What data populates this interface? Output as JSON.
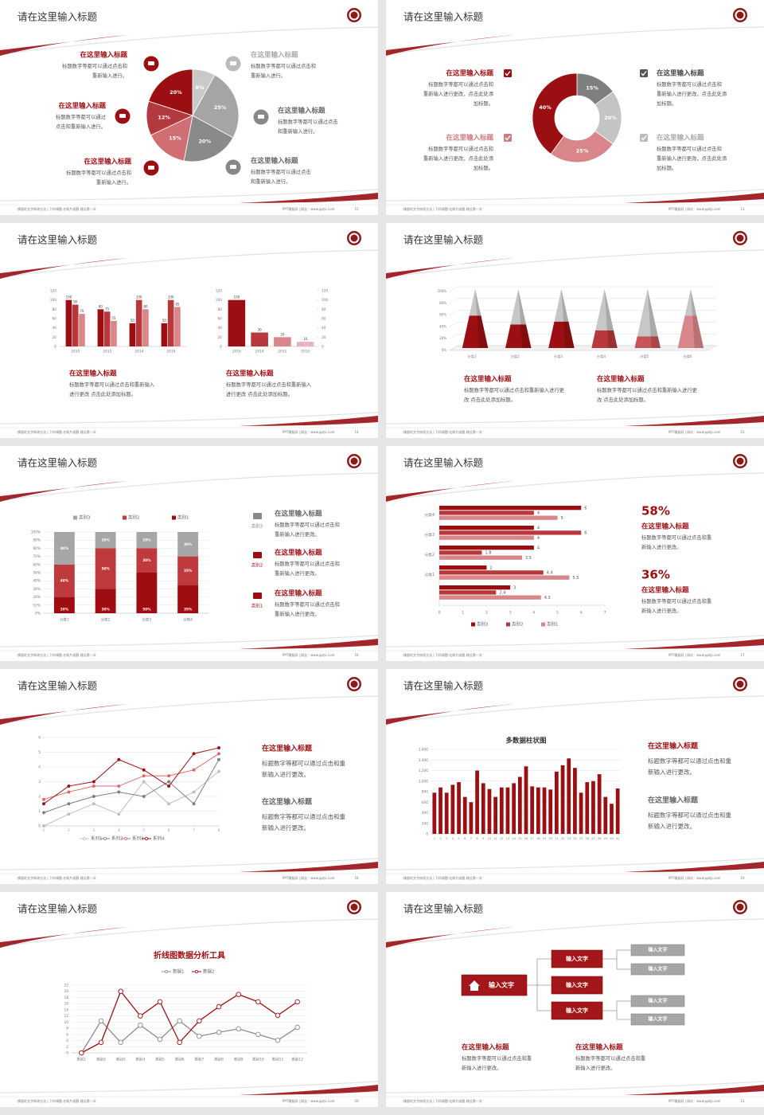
{
  "slides": [
    {
      "title": "请在这里输入标题",
      "footer_left": "模版的文字修改方法 | 下科课题-右联片阅题-建议第一次",
      "footer_right": "PPT模板网 | 网址：www.pptjs.com",
      "page": "12",
      "blocks": [
        {
          "heading": "在这里输入标题",
          "lines": [
            "标题数字等都可以通过点击和",
            "重新输入进行。"
          ]
        },
        {
          "heading": "在这里输入标题",
          "lines": [
            "标题数字等都可以通过",
            "点击和重新输入进行。"
          ]
        },
        {
          "heading": "在这里输入标题",
          "lines": [
            "标题数字等都可以通过点击和",
            "重新输入进行。"
          ]
        },
        {
          "heading": "在这里输入标题",
          "lines": [
            "标题数字等都可以通过点击和",
            "重新输入进行。"
          ]
        },
        {
          "heading": "在这里输入标题",
          "lines": [
            "标题数字等都可以通过点击",
            "和重新输入进行。"
          ]
        },
        {
          "heading": "在这里输入标题",
          "lines": [
            "标题数字等都可以通过点击",
            "和重新输入进行。"
          ]
        }
      ]
    },
    {
      "title": "请在这里输入标题",
      "footer_left": "模版的文字修改方法 | 下科课题-右联片阅题-建议第一次",
      "footer_right": "PPT模板网 | 网址：www.pptjs.com",
      "page": "13",
      "blocks": [
        {
          "heading": "在这里输入标题",
          "lines": [
            "标题数字等都可以通过点击和",
            "重新输入进行更改，点击此处添",
            "加标题。"
          ]
        },
        {
          "heading": "在这里输入标题",
          "lines": [
            "标题数字等都可以通过点击和",
            "重新输入进行更改，点击此处添",
            "加标题。"
          ]
        },
        {
          "heading": "在这里输入标题",
          "lines": [
            "标题数字等都可以通过点击和",
            "重新输入进行更改，点击此处添",
            "加标题。"
          ]
        },
        {
          "heading": "在这里输入标题",
          "lines": [
            "标题数字等都可以通过点击和",
            "重新输入进行更改，点击此处添",
            "加标题。"
          ]
        }
      ]
    },
    {
      "title": "请在这里输入标题",
      "footer_left": "模版的文字修改方法 | 下科课题-右联片阅题-建议第一次",
      "footer_right": "PPT模板网 | 网址：www.pptjs.com",
      "page": "14",
      "blocks": [
        {
          "heading": "在这里输入标题",
          "lines": [
            "标题数字等都可以通过点击和重新输入",
            "进行更改 点击此处添加标题。"
          ]
        },
        {
          "heading": "在这里输入标题",
          "lines": [
            "标题数字等都可以通过点击和重新输入",
            "进行更改 点击此处添加标题。"
          ]
        }
      ]
    },
    {
      "title": "请在这里输入标题",
      "footer_left": "模版的文字修改方法 | 下科课题-右联片阅题-建议第一次",
      "footer_right": "PPT模板网 | 网址：www.pptjs.com",
      "page": "15",
      "blocks": [
        {
          "heading": "在这里输入标题",
          "lines": [
            "标题数字等都可以通过点击和重新输入进行更",
            "改 点击此处添加标题。"
          ]
        },
        {
          "heading": "在这里输入标题",
          "lines": [
            "标题数字等都可以通过点击和重新输入进行更",
            "改 点击此处添加标题。"
          ]
        }
      ]
    },
    {
      "title": "请在这里输入标题",
      "footer_left": "模版的文字修改方法 | 下科课题-右联片阅题-建议第一次",
      "footer_right": "PPT模板网 | 网址：www.pptjs.com",
      "page": "16",
      "blocks": [
        {
          "label": "类别3",
          "heading": "在这里输入标题",
          "lines": [
            "标题数字等都可以通过点击和",
            "重新输入进行更改。"
          ]
        },
        {
          "label": "类别2",
          "heading": "在这里输入标题",
          "lines": [
            "标题数字等都可以通过点击和",
            "重新输入进行更改。"
          ]
        },
        {
          "label": "类别1",
          "heading": "在这里输入标题",
          "lines": [
            "标题数字等都可以通过点击和",
            "重新输入进行更改。"
          ]
        }
      ]
    },
    {
      "title": "请在这里输入标题",
      "footer_left": "模版的文字修改方法 | 下科课题-右联片阅题-建议第一次",
      "footer_right": "PPT模板网 | 网址：www.pptjs.com",
      "page": "17",
      "blocks": [
        {
          "stat": "58%",
          "heading": "在这里输入标题",
          "lines": [
            "标题数字等都可以通过点击和重",
            "新输入进行更改。"
          ]
        },
        {
          "stat": "36%",
          "heading": "在这里输入标题",
          "lines": [
            "标题数字等都可以通过点击和重",
            "新输入进行更改。"
          ]
        }
      ]
    },
    {
      "title": "请在这里输入标题",
      "footer_left": "模版的文字修改方法 | 下科课题-右联片阅题-建议第一次",
      "footer_right": "PPT模板网 | 网址：www.pptjs.com",
      "page": "18",
      "blocks": [
        {
          "heading": "在这里输入标题",
          "lines": [
            "标题数字等都可以通过点击和重",
            "新输入进行更改。"
          ]
        },
        {
          "heading": "在这里输入标题",
          "lines": [
            "标题数字等都可以通过点击和重",
            "新输入进行更改。"
          ]
        }
      ]
    },
    {
      "title": "请在这里输入标题",
      "footer_left": "模版的文字修改方法 | 下科课题-右联片阅题-建议第一次",
      "footer_right": "PPT模板网 | 网址：www.pptjs.com",
      "page": "19",
      "blocks": [
        {
          "heading": "在这里输入标题",
          "lines": [
            "标题数字等都可以通过点击和重",
            "新输入进行更改。"
          ]
        },
        {
          "heading": "在这里输入标题",
          "lines": [
            "标题数字等都可以通过点击和重",
            "新输入进行更改。"
          ]
        }
      ]
    },
    {
      "title": "请在这里输入标题",
      "footer_left": "模版的文字修改方法 | 下科课题-右联片阅题-建议第一次",
      "footer_right": "PPT模板网 | 网址：www.pptjs.com",
      "page": "20",
      "blocks": []
    },
    {
      "title": "请在这里输入标题",
      "footer_left": "模版的文字修改方法 | 下科课题-右联片阅题-建议第一次",
      "footer_right": "PPT模板网 | 网址：www.pptjs.com",
      "page": "21",
      "nodes": [
        "输入文字",
        "输入文字",
        "输入文字",
        "输入文字",
        "输入文字",
        "输入文字",
        "输入文字",
        "输入文字"
      ],
      "blocks": [
        {
          "heading": "在这里输入标题",
          "lines": [
            "标题数字等都可以通过点击和重",
            "新输入进行更改。"
          ]
        },
        {
          "heading": "在这里输入标题",
          "lines": [
            "标题数字等都可以通过点击和重",
            "新输入进行更改。"
          ]
        }
      ]
    }
  ],
  "chart_data": [
    {
      "type": "pie",
      "values": [
        8,
        25,
        20,
        15,
        12,
        20
      ],
      "value_labels": [
        "8%",
        "25%",
        "20%",
        "15%",
        "12%",
        "20%"
      ],
      "colors": [
        "#c9c9c9",
        "#a5a5a5",
        "#8a8a8a",
        "#cf6f73",
        "#b23a3e",
        "#9b0f12"
      ]
    },
    {
      "type": "donut",
      "values": [
        15,
        20,
        25,
        40
      ],
      "value_labels": [
        "15%",
        "20%",
        "25%",
        "40%"
      ],
      "colors": [
        "#7f7f7f",
        "#c4c4c4",
        "#d9868a",
        "#9b0f12"
      ]
    },
    {
      "type": "bar",
      "categories": [
        "2010",
        "2012",
        "2014",
        "2016"
      ],
      "series": [
        {
          "color": "#9b0f12",
          "values": [
            100,
            80,
            50,
            50
          ]
        },
        {
          "color": "#b8383b",
          "values": [
            90,
            75,
            100,
            100
          ]
        },
        {
          "color": "#d9868a",
          "values": [
            70,
            55,
            80,
            85
          ]
        }
      ],
      "ylim": [
        0,
        120
      ],
      "yticks": [
        0,
        20,
        40,
        60,
        80,
        100,
        120
      ],
      "data_labels": true
    },
    {
      "type": "bar",
      "categories": [
        "2016",
        "2014",
        "2012",
        "2010"
      ],
      "values": [
        100,
        30,
        20,
        10
      ],
      "colors": [
        "#9b0f12",
        "#b8383b",
        "#d9868a",
        "#e8b4b6"
      ],
      "ylim": [
        0,
        120
      ],
      "yticks": [
        0,
        20,
        40,
        60,
        80,
        100,
        120
      ],
      "y2lim": [
        0,
        120
      ],
      "y2ticks": [
        0,
        20,
        40,
        60,
        80,
        100,
        120
      ],
      "data_labels": true
    },
    {
      "type": "cone",
      "categories": [
        "分类1",
        "分类2",
        "分类3",
        "分类4",
        "分类5",
        "分类6"
      ],
      "series": [
        {
          "colors": [
            "#9b0f12",
            "#9b0f12",
            "#9b0f12",
            "#b8383b",
            "#c65458",
            "#d9868a"
          ],
          "values": [
            55,
            40,
            45,
            30,
            20,
            55
          ]
        },
        {
          "color": "#bdbdbd",
          "values": [
            45,
            60,
            55,
            70,
            80,
            45
          ]
        }
      ],
      "ylim": [
        0,
        100
      ],
      "yticks": [
        {
          "value": 0,
          "label": "0%"
        },
        {
          "value": 20,
          "label": "20%"
        },
        {
          "value": 40,
          "label": "40%"
        },
        {
          "value": 60,
          "label": "60%"
        },
        {
          "value": 80,
          "label": "80%"
        },
        {
          "value": 100,
          "label": "100%"
        }
      ],
      "grid": true
    },
    {
      "type": "stacked_bar",
      "categories": [
        "分类1",
        "分类2",
        "分类3",
        "分类4"
      ],
      "series": [
        {
          "name": "类别1",
          "color": "#a00d10",
          "values": [
            20,
            30,
            50,
            35
          ],
          "value_labels": [
            "20%",
            "30%",
            "50%",
            "35%"
          ]
        },
        {
          "name": "类别2",
          "color": "#bf3a3d",
          "values": [
            40,
            50,
            30,
            35
          ],
          "value_labels": [
            "40%",
            "50%",
            "30%",
            "35%"
          ]
        },
        {
          "name": "类别3",
          "color": "#a6a6a6",
          "values": [
            40,
            20,
            20,
            30
          ],
          "value_labels": [
            "40%",
            "20%",
            "20%",
            "30%"
          ]
        }
      ],
      "ylim": [
        0,
        100
      ],
      "yticks": [
        {
          "value": 0,
          "label": "0%"
        },
        {
          "value": 10,
          "label": "10%"
        },
        {
          "value": 20,
          "label": "20%"
        },
        {
          "value": 30,
          "label": "30%"
        },
        {
          "value": 40,
          "label": "40%"
        },
        {
          "value": 50,
          "label": "50%"
        },
        {
          "value": 60,
          "label": "60%"
        },
        {
          "value": 70,
          "label": "70%"
        },
        {
          "value": 80,
          "label": "80%"
        },
        {
          "value": 90,
          "label": "90%"
        },
        {
          "value": 100,
          "label": "100%"
        }
      ],
      "grid": true,
      "legend": "top"
    },
    {
      "type": "hbar",
      "categories": [
        "分类4",
        "分类3",
        "分类2",
        "分类1",
        null
      ],
      "series": [
        {
          "name": "类别3",
          "color": "#9b0f12",
          "values": [
            6,
            4,
            4,
            2,
            3
          ]
        },
        {
          "name": "类别2",
          "color": "#b8383b",
          "values": [
            4,
            6,
            1.8,
            4.4,
            2.4
          ]
        },
        {
          "name": "类别1",
          "color": "#d9868a",
          "values": [
            5,
            4,
            3.5,
            5.5,
            4.3
          ]
        }
      ],
      "xlim": [
        0,
        7
      ],
      "xticks": [
        0,
        1,
        2,
        3,
        4,
        5,
        6,
        7
      ],
      "data_labels": true,
      "legend": "bottom"
    },
    {
      "type": "line",
      "x": [
        1,
        2,
        3,
        4,
        5,
        6,
        7,
        8
      ],
      "xlim": [
        1,
        8
      ],
      "xticks": [
        1,
        2,
        3,
        4,
        5,
        6,
        7,
        8
      ],
      "series": [
        {
          "name": "系列1",
          "color": "#bfbfbf",
          "values": [
            0,
            0.8,
            1.5,
            0.8,
            3,
            1.5,
            2.3,
            3.7
          ]
        },
        {
          "name": "系列2",
          "color": "#7f7f7f",
          "values": [
            0.9,
            1.5,
            2,
            2.3,
            2,
            3,
            1.5,
            4.5
          ]
        },
        {
          "name": "系列3",
          "color": "#d9686c",
          "values": [
            1.8,
            2.3,
            2.7,
            2.7,
            3.4,
            3.4,
            3.8,
            4.9
          ]
        },
        {
          "name": "系列4",
          "color": "#9b0f12",
          "values": [
            1.5,
            2.7,
            3,
            4.5,
            3.8,
            2.7,
            4.9,
            5.3
          ]
        }
      ],
      "ylim": [
        0,
        6
      ],
      "yticks": [
        0,
        1,
        2,
        3,
        4,
        5,
        6
      ],
      "grid": true,
      "legend": "bottom",
      "markers": "dot"
    },
    {
      "type": "bar",
      "title": "多数据柱状图",
      "categories": [
        "1",
        "2",
        "3",
        "4",
        "5",
        "6",
        "7",
        "8",
        "9",
        "10",
        "11",
        "12",
        "13",
        "14",
        "15",
        "16",
        "17",
        "18",
        "19",
        "20",
        "21",
        "22",
        "23",
        "24",
        "25",
        "26",
        "27",
        "28",
        "29",
        "30",
        "31"
      ],
      "values": [
        780,
        880,
        780,
        930,
        980,
        700,
        600,
        1200,
        960,
        850,
        700,
        880,
        880,
        960,
        1080,
        1280,
        900,
        880,
        880,
        840,
        1180,
        1300,
        1430,
        1250,
        780,
        980,
        1000,
        1130,
        700,
        570,
        860
      ],
      "color": "#9b0f12",
      "ylim": [
        0,
        1600
      ],
      "yticks": [
        0,
        200,
        400,
        600,
        800,
        {
          "value": 1000,
          "label": "1,000"
        },
        {
          "value": 1200,
          "label": "1,200"
        },
        {
          "value": 1400,
          "label": "1,400"
        },
        {
          "value": 1600,
          "label": "1,600"
        }
      ],
      "grid": true
    },
    {
      "type": "line",
      "title": "折线图数据分析工具",
      "categories": [
        "类别1",
        "类别2",
        "类别3",
        "类别4",
        "类别5",
        "类别6",
        "类别7",
        "类别8",
        "类别9",
        "类别10",
        "类别11",
        "类别12"
      ],
      "series": [
        {
          "name": "数据1",
          "color": "#8c8c8c",
          "values": [
            0,
            10.4,
            3.4,
            9,
            4.4,
            10.4,
            5.4,
            6.7,
            7.8,
            6,
            4.1,
            8.3
          ]
        },
        {
          "name": "数据2",
          "color": "#9b0f12",
          "values": [
            0,
            3.4,
            20,
            12,
            16.6,
            3.4,
            10.4,
            15,
            19,
            16.6,
            12.2,
            16.6
          ]
        }
      ],
      "ylim": [
        0,
        22
      ],
      "yticks": [
        0,
        2,
        4,
        6,
        8,
        10,
        12,
        14,
        16,
        18,
        20,
        22
      ],
      "grid": true,
      "legend": "top",
      "markers": "ring"
    }
  ]
}
